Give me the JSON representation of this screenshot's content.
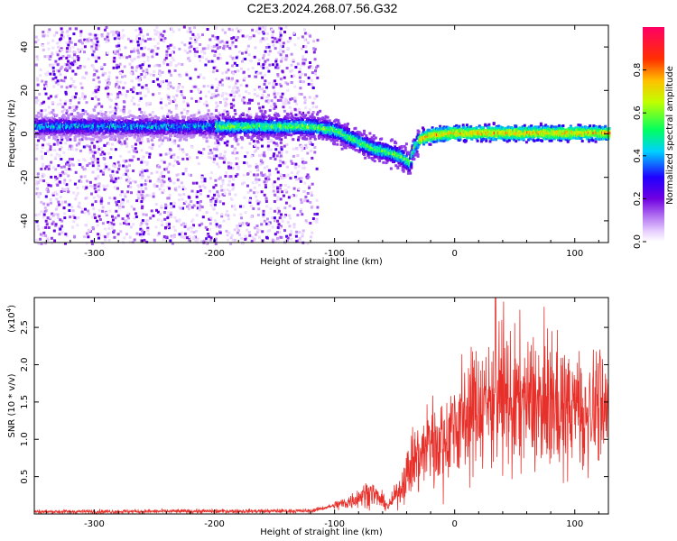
{
  "title": "C2E3.2024.268.07.56.G32",
  "chart_data": [
    {
      "type": "heatmap",
      "xlabel": "Height of straight line (km)",
      "ylabel": "Frequency (Hz)",
      "xlim": [
        -350,
        128
      ],
      "ylim": [
        -50,
        50
      ],
      "xticks": [
        -300,
        -200,
        -100,
        0,
        100
      ],
      "yticks": [
        -40,
        -20,
        0,
        20,
        40
      ],
      "colorbar": {
        "label": "Normalized spectral amplitude",
        "range": [
          0.0,
          1.0
        ],
        "ticks": [
          "0.0",
          "0.2",
          "0.4",
          "0.6",
          "0.8"
        ],
        "colors": [
          "#ffffff",
          "#cc66ff",
          "#7700dd",
          "#0000ff",
          "#00ffff",
          "#00ff66",
          "#ffff00",
          "#ff8800",
          "#ff0000",
          "#ff0077"
        ]
      },
      "ridge": {
        "x": [
          -350,
          -300,
          -250,
          -200,
          -150,
          -120,
          -100,
          -85,
          -70,
          -55,
          -45,
          -38,
          -35,
          -30,
          -20,
          0,
          50,
          100,
          128
        ],
        "y": [
          4,
          4,
          4,
          4,
          4,
          4,
          2,
          -2,
          -6,
          -8,
          -10,
          -13,
          -6,
          -2,
          0,
          1,
          1,
          1,
          1
        ]
      }
    },
    {
      "type": "line",
      "xlabel": "Height of straight line (km)",
      "ylabel": "SNR (10 * v/v)",
      "y_multiplier": "(x10",
      "y_multiplier_exp": "4",
      "xlim": [
        -350,
        128
      ],
      "ylim": [
        0,
        2.9
      ],
      "xticks": [
        -300,
        -200,
        -100,
        0,
        100
      ],
      "yticks": [
        0.5,
        1.0,
        1.5,
        2.0,
        2.5
      ],
      "color": "#e8302a",
      "envelope": {
        "x": [
          -350,
          -120,
          -90,
          -70,
          -55,
          -45,
          -35,
          -20,
          -5,
          10,
          30,
          50,
          80,
          110,
          128
        ],
        "y": [
          0.03,
          0.04,
          0.15,
          0.3,
          0.1,
          0.35,
          0.7,
          0.95,
          1.1,
          1.35,
          1.55,
          1.5,
          1.45,
          1.4,
          1.4
        ]
      },
      "peak": {
        "x": 34,
        "y": 2.9
      }
    }
  ]
}
